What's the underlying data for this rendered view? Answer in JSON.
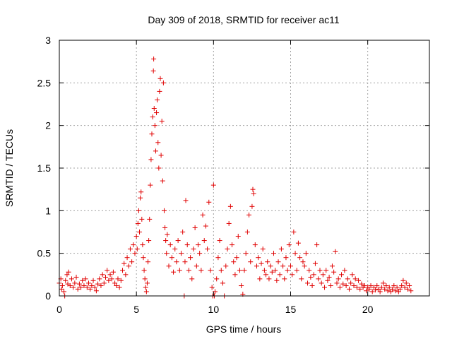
{
  "chart_data": {
    "type": "scatter",
    "title": "Day 309 of 2018, SRMTID for receiver ac11",
    "xlabel": "GPS time / hours",
    "ylabel": "SRMTID / TECUs",
    "xlim": [
      0,
      24
    ],
    "ylim": [
      0,
      3
    ],
    "xticks": [
      0,
      5,
      10,
      15,
      20
    ],
    "xtick_labels": [
      "0",
      "5",
      "10",
      "15",
      "20"
    ],
    "yticks": [
      0,
      0.5,
      1,
      1.5,
      2,
      2.5,
      3
    ],
    "ytick_labels": [
      "0",
      "0.5",
      "1",
      "1.5",
      "2",
      "2.5",
      "3"
    ],
    "grid": true,
    "marker": "+",
    "color": "#e00000",
    "series": [
      {
        "name": "SRMTID",
        "points": [
          [
            0.0,
            0.15
          ],
          [
            0.1,
            0.2
          ],
          [
            0.15,
            0.08
          ],
          [
            0.2,
            0.12
          ],
          [
            0.3,
            0.05
          ],
          [
            0.35,
            0.0
          ],
          [
            0.4,
            0.18
          ],
          [
            0.5,
            0.25
          ],
          [
            0.55,
            0.14
          ],
          [
            0.6,
            0.28
          ],
          [
            0.7,
            0.12
          ],
          [
            0.8,
            0.2
          ],
          [
            0.9,
            0.1
          ],
          [
            1.0,
            0.15
          ],
          [
            1.1,
            0.22
          ],
          [
            1.2,
            0.08
          ],
          [
            1.3,
            0.14
          ],
          [
            1.4,
            0.1
          ],
          [
            1.5,
            0.18
          ],
          [
            1.6,
            0.12
          ],
          [
            1.7,
            0.2
          ],
          [
            1.8,
            0.1
          ],
          [
            1.9,
            0.15
          ],
          [
            2.0,
            0.08
          ],
          [
            2.1,
            0.12
          ],
          [
            2.2,
            0.18
          ],
          [
            2.3,
            0.1
          ],
          [
            2.4,
            0.06
          ],
          [
            2.5,
            0.14
          ],
          [
            2.6,
            0.2
          ],
          [
            2.7,
            0.12
          ],
          [
            2.8,
            0.25
          ],
          [
            2.9,
            0.15
          ],
          [
            3.0,
            0.22
          ],
          [
            3.1,
            0.3
          ],
          [
            3.2,
            0.18
          ],
          [
            3.3,
            0.25
          ],
          [
            3.4,
            0.2
          ],
          [
            3.5,
            0.28
          ],
          [
            3.6,
            0.15
          ],
          [
            3.7,
            0.12
          ],
          [
            3.8,
            0.2
          ],
          [
            3.9,
            0.1
          ],
          [
            4.0,
            0.18
          ],
          [
            4.1,
            0.3
          ],
          [
            4.2,
            0.38
          ],
          [
            4.3,
            0.25
          ],
          [
            4.4,
            0.45
          ],
          [
            4.5,
            0.35
          ],
          [
            4.6,
            0.55
          ],
          [
            4.7,
            0.4
          ],
          [
            4.8,
            0.6
          ],
          [
            4.9,
            0.5
          ],
          [
            5.0,
            0.7
          ],
          [
            5.05,
            0.55
          ],
          [
            5.1,
            0.85
          ],
          [
            5.15,
            1.0
          ],
          [
            5.2,
            0.75
          ],
          [
            5.25,
            1.15
          ],
          [
            5.3,
            1.22
          ],
          [
            5.35,
            0.9
          ],
          [
            5.4,
            0.6
          ],
          [
            5.45,
            0.45
          ],
          [
            5.5,
            0.3
          ],
          [
            5.55,
            0.2
          ],
          [
            5.6,
            0.1
          ],
          [
            5.65,
            0.05
          ],
          [
            5.7,
            0.15
          ],
          [
            5.75,
            0.4
          ],
          [
            5.8,
            0.65
          ],
          [
            5.85,
            0.9
          ],
          [
            5.9,
            1.3
          ],
          [
            5.95,
            1.6
          ],
          [
            6.0,
            1.9
          ],
          [
            6.05,
            2.1
          ],
          [
            6.1,
            2.64
          ],
          [
            6.12,
            2.78
          ],
          [
            6.15,
            2.2
          ],
          [
            6.2,
            2.0
          ],
          [
            6.25,
            1.7
          ],
          [
            6.3,
            2.15
          ],
          [
            6.35,
            2.3
          ],
          [
            6.4,
            1.8
          ],
          [
            6.45,
            1.5
          ],
          [
            6.5,
            2.4
          ],
          [
            6.55,
            2.55
          ],
          [
            6.6,
            1.65
          ],
          [
            6.65,
            2.05
          ],
          [
            6.7,
            1.35
          ],
          [
            6.75,
            2.5
          ],
          [
            6.8,
            1.0
          ],
          [
            6.85,
            0.8
          ],
          [
            6.9,
            0.65
          ],
          [
            6.95,
            0.5
          ],
          [
            7.0,
            0.72
          ],
          [
            7.1,
            0.35
          ],
          [
            7.2,
            0.6
          ],
          [
            7.3,
            0.45
          ],
          [
            7.4,
            0.28
          ],
          [
            7.5,
            0.55
          ],
          [
            7.6,
            0.4
          ],
          [
            7.7,
            0.65
          ],
          [
            7.8,
            0.3
          ],
          [
            7.9,
            0.5
          ],
          [
            8.0,
            0.75
          ],
          [
            8.1,
            0.0
          ],
          [
            8.15,
            0.4
          ],
          [
            8.2,
            1.12
          ],
          [
            8.3,
            0.6
          ],
          [
            8.4,
            0.3
          ],
          [
            8.5,
            0.45
          ],
          [
            8.6,
            0.2
          ],
          [
            8.7,
            0.55
          ],
          [
            8.8,
            0.8
          ],
          [
            8.9,
            0.35
          ],
          [
            9.0,
            0.6
          ],
          [
            9.1,
            0.5
          ],
          [
            9.2,
            0.3
          ],
          [
            9.3,
            0.95
          ],
          [
            9.4,
            0.65
          ],
          [
            9.5,
            0.82
          ],
          [
            9.6,
            0.55
          ],
          [
            9.7,
            1.1
          ],
          [
            9.8,
            0.3
          ],
          [
            9.9,
            0.1
          ],
          [
            9.95,
            0.0
          ],
          [
            10.0,
            1.3
          ],
          [
            10.05,
            0.0
          ],
          [
            10.1,
            0.05
          ],
          [
            10.2,
            0.2
          ],
          [
            10.3,
            0.45
          ],
          [
            10.4,
            0.65
          ],
          [
            10.5,
            0.3
          ],
          [
            10.6,
            0.15
          ],
          [
            10.7,
            0.0
          ],
          [
            10.8,
            0.35
          ],
          [
            10.9,
            0.55
          ],
          [
            11.0,
            0.85
          ],
          [
            11.1,
            1.05
          ],
          [
            11.2,
            0.6
          ],
          [
            11.3,
            0.4
          ],
          [
            11.4,
            0.25
          ],
          [
            11.5,
            0.45
          ],
          [
            11.6,
            0.7
          ],
          [
            11.7,
            0.3
          ],
          [
            11.8,
            0.12
          ],
          [
            11.9,
            0.02
          ],
          [
            12.0,
            0.3
          ],
          [
            12.1,
            0.5
          ],
          [
            12.2,
            0.75
          ],
          [
            12.3,
            0.95
          ],
          [
            12.4,
            0.4
          ],
          [
            12.5,
            1.05
          ],
          [
            12.55,
            1.25
          ],
          [
            12.6,
            1.2
          ],
          [
            12.7,
            0.6
          ],
          [
            12.8,
            0.35
          ],
          [
            12.9,
            0.45
          ],
          [
            13.0,
            0.2
          ],
          [
            13.1,
            0.38
          ],
          [
            13.2,
            0.55
          ],
          [
            13.3,
            0.3
          ],
          [
            13.4,
            0.25
          ],
          [
            13.5,
            0.4
          ],
          [
            13.6,
            0.2
          ],
          [
            13.7,
            0.35
          ],
          [
            13.8,
            0.28
          ],
          [
            13.9,
            0.5
          ],
          [
            14.0,
            0.3
          ],
          [
            14.1,
            0.18
          ],
          [
            14.2,
            0.4
          ],
          [
            14.3,
            0.25
          ],
          [
            14.4,
            0.55
          ],
          [
            14.5,
            0.35
          ],
          [
            14.6,
            0.2
          ],
          [
            14.7,
            0.45
          ],
          [
            14.8,
            0.3
          ],
          [
            14.9,
            0.6
          ],
          [
            15.0,
            0.35
          ],
          [
            15.1,
            0.25
          ],
          [
            15.2,
            0.75
          ],
          [
            15.3,
            0.5
          ],
          [
            15.4,
            0.3
          ],
          [
            15.5,
            0.62
          ],
          [
            15.6,
            0.45
          ],
          [
            15.7,
            0.2
          ],
          [
            15.8,
            0.4
          ],
          [
            15.9,
            0.35
          ],
          [
            16.0,
            0.5
          ],
          [
            16.1,
            0.15
          ],
          [
            16.2,
            0.3
          ],
          [
            16.3,
            0.22
          ],
          [
            16.4,
            0.12
          ],
          [
            16.5,
            0.25
          ],
          [
            16.6,
            0.38
          ],
          [
            16.7,
            0.6
          ],
          [
            16.8,
            0.2
          ],
          [
            16.9,
            0.3
          ],
          [
            17.0,
            0.15
          ],
          [
            17.1,
            0.25
          ],
          [
            17.2,
            0.1
          ],
          [
            17.3,
            0.3
          ],
          [
            17.4,
            0.18
          ],
          [
            17.5,
            0.22
          ],
          [
            17.6,
            0.12
          ],
          [
            17.7,
            0.35
          ],
          [
            17.8,
            0.28
          ],
          [
            17.9,
            0.52
          ],
          [
            18.0,
            0.15
          ],
          [
            18.1,
            0.2
          ],
          [
            18.2,
            0.1
          ],
          [
            18.3,
            0.25
          ],
          [
            18.4,
            0.14
          ],
          [
            18.5,
            0.3
          ],
          [
            18.6,
            0.12
          ],
          [
            18.7,
            0.2
          ],
          [
            18.8,
            0.08
          ],
          [
            18.9,
            0.15
          ],
          [
            19.0,
            0.25
          ],
          [
            19.1,
            0.12
          ],
          [
            19.2,
            0.2
          ],
          [
            19.3,
            0.1
          ],
          [
            19.4,
            0.18
          ],
          [
            19.5,
            0.08
          ],
          [
            19.6,
            0.14
          ],
          [
            19.7,
            0.1
          ],
          [
            19.8,
            0.12
          ],
          [
            19.9,
            0.06
          ],
          [
            20.0,
            0.1
          ],
          [
            20.1,
            0.08
          ],
          [
            20.2,
            0.12
          ],
          [
            20.3,
            0.05
          ],
          [
            20.4,
            0.1
          ],
          [
            20.5,
            0.07
          ],
          [
            20.6,
            0.12
          ],
          [
            20.7,
            0.08
          ],
          [
            20.8,
            0.05
          ],
          [
            20.9,
            0.1
          ],
          [
            21.0,
            0.15
          ],
          [
            21.1,
            0.08
          ],
          [
            21.2,
            0.12
          ],
          [
            21.3,
            0.06
          ],
          [
            21.4,
            0.1
          ],
          [
            21.5,
            0.05
          ],
          [
            21.6,
            0.08
          ],
          [
            21.7,
            0.12
          ],
          [
            21.8,
            0.06
          ],
          [
            21.9,
            0.1
          ],
          [
            22.0,
            0.05
          ],
          [
            22.1,
            0.08
          ],
          [
            22.2,
            0.12
          ],
          [
            22.3,
            0.18
          ],
          [
            22.4,
            0.1
          ],
          [
            22.5,
            0.15
          ],
          [
            22.6,
            0.08
          ],
          [
            22.7,
            0.12
          ],
          [
            22.8,
            0.06
          ]
        ]
      }
    ]
  }
}
